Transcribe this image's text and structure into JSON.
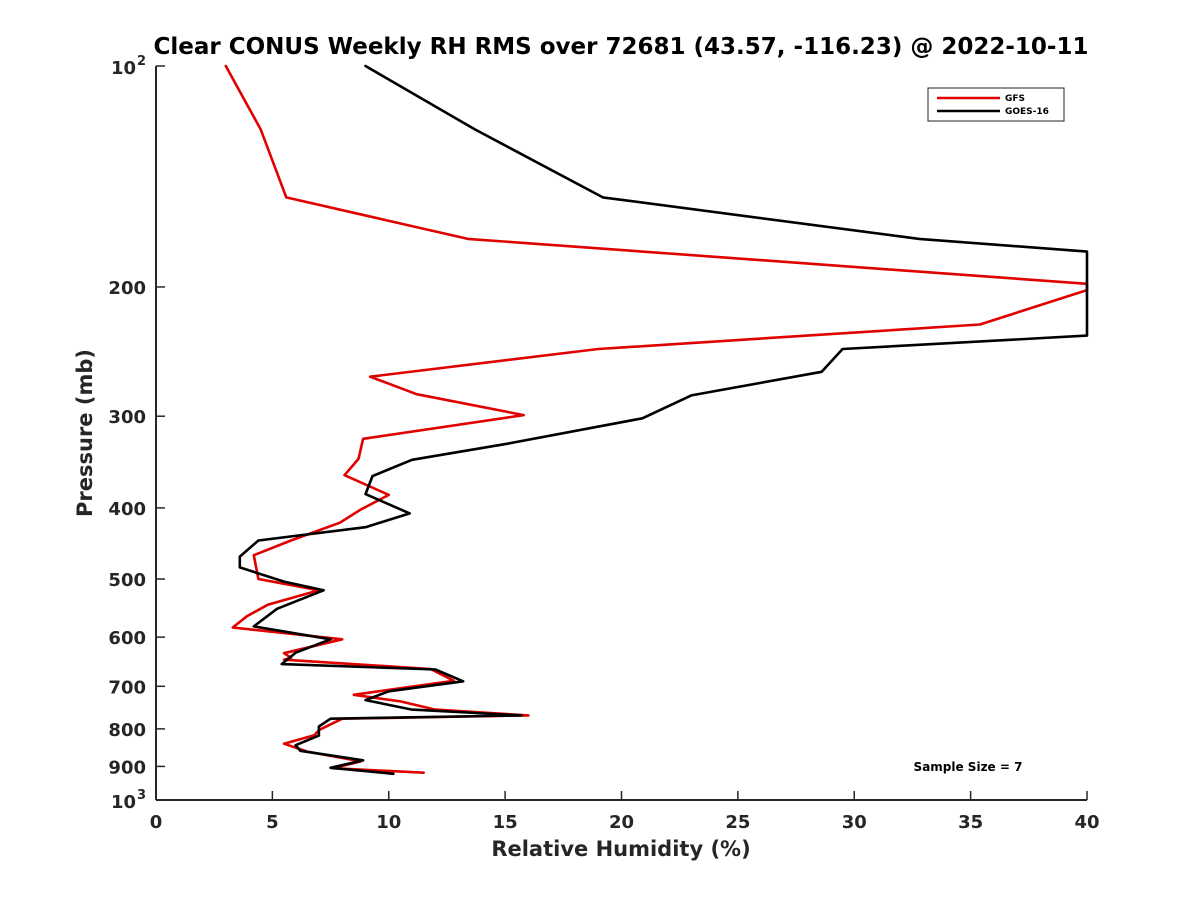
{
  "chart_data": {
    "type": "line",
    "title": "Clear CONUS Weekly RH RMS over 72681 (43.57, -116.23) @ 2022-10-11",
    "xlabel": "Relative Humidity (%)",
    "ylabel": "Pressure (mb)",
    "xlim": [
      0,
      40
    ],
    "ylim": [
      100,
      1000
    ],
    "y_scale": "log",
    "y_reversed": true,
    "grid": false,
    "legend_position": "top-right",
    "annotation": "Sample Size = 7",
    "x_ticks": [
      {
        "value": 0,
        "label": "0"
      },
      {
        "value": 5,
        "label": "5"
      },
      {
        "value": 10,
        "label": "10"
      },
      {
        "value": 15,
        "label": "15"
      },
      {
        "value": 20,
        "label": "20"
      },
      {
        "value": 25,
        "label": "25"
      },
      {
        "value": 30,
        "label": "30"
      },
      {
        "value": 35,
        "label": "35"
      },
      {
        "value": 40,
        "label": "40"
      }
    ],
    "y_ticks": [
      {
        "value": 100,
        "label": "10",
        "exp": "2"
      },
      {
        "value": 200,
        "label": "200"
      },
      {
        "value": 300,
        "label": "300"
      },
      {
        "value": 400,
        "label": "400"
      },
      {
        "value": 500,
        "label": "500"
      },
      {
        "value": 600,
        "label": "600"
      },
      {
        "value": 700,
        "label": "700"
      },
      {
        "value": 800,
        "label": "800"
      },
      {
        "value": 900,
        "label": "900"
      },
      {
        "value": 1000,
        "label": "10",
        "exp": "3"
      }
    ],
    "series": [
      {
        "name": "GFS",
        "color": "#e00000",
        "points": [
          [
            3.0,
            100
          ],
          [
            4.5,
            122
          ],
          [
            5.6,
            151
          ],
          [
            13.4,
            172
          ],
          [
            40.0,
            198
          ],
          [
            40.0,
            202
          ],
          [
            35.4,
            225
          ],
          [
            19.0,
            243
          ],
          [
            9.2,
            265
          ],
          [
            11.2,
            280
          ],
          [
            15.8,
            299
          ],
          [
            8.9,
            322
          ],
          [
            8.7,
            343
          ],
          [
            8.1,
            361
          ],
          [
            10.0,
            384
          ],
          [
            8.8,
            402
          ],
          [
            7.9,
            419
          ],
          [
            5.8,
            443
          ],
          [
            4.2,
            464
          ],
          [
            4.4,
            500
          ],
          [
            7.0,
            518
          ],
          [
            4.8,
            542
          ],
          [
            3.9,
            562
          ],
          [
            3.3,
            582
          ],
          [
            8.0,
            604
          ],
          [
            5.5,
            631
          ],
          [
            5.8,
            640
          ],
          [
            5.5,
            644
          ],
          [
            11.8,
            663
          ],
          [
            12.8,
            688
          ],
          [
            8.5,
            719
          ],
          [
            10.5,
            734
          ],
          [
            12.0,
            753
          ],
          [
            16.0,
            767
          ],
          [
            8.0,
            775
          ],
          [
            7.0,
            803
          ],
          [
            6.8,
            816
          ],
          [
            5.5,
            838
          ],
          [
            6.5,
            859
          ],
          [
            8.8,
            886
          ],
          [
            7.6,
            905
          ],
          [
            11.5,
            918
          ]
        ]
      },
      {
        "name": "GOES-16",
        "color": "#000000",
        "points": [
          [
            9.0,
            100
          ],
          [
            13.7,
            122
          ],
          [
            19.2,
            151
          ],
          [
            32.8,
            172
          ],
          [
            40.0,
            179
          ],
          [
            40.0,
            233
          ],
          [
            29.5,
            243
          ],
          [
            28.6,
            261
          ],
          [
            23.0,
            281
          ],
          [
            20.9,
            302
          ],
          [
            15.1,
            327
          ],
          [
            11.0,
            344
          ],
          [
            9.3,
            362
          ],
          [
            9.0,
            383
          ],
          [
            10.9,
            407
          ],
          [
            9.0,
            425
          ],
          [
            4.4,
            443
          ],
          [
            3.6,
            466
          ],
          [
            3.6,
            482
          ],
          [
            5.5,
            504
          ],
          [
            7.2,
            518
          ],
          [
            5.2,
            549
          ],
          [
            4.2,
            580
          ],
          [
            7.5,
            604
          ],
          [
            6.0,
            630
          ],
          [
            5.4,
            653
          ],
          [
            12.0,
            664
          ],
          [
            13.2,
            689
          ],
          [
            10.0,
            711
          ],
          [
            9.0,
            731
          ],
          [
            11.0,
            753
          ],
          [
            15.7,
            767
          ],
          [
            7.5,
            775
          ],
          [
            7.0,
            794
          ],
          [
            7.0,
            817
          ],
          [
            6.0,
            842
          ],
          [
            6.2,
            857
          ],
          [
            8.9,
            883
          ],
          [
            7.5,
            904
          ],
          [
            10.2,
            921
          ]
        ]
      }
    ]
  }
}
